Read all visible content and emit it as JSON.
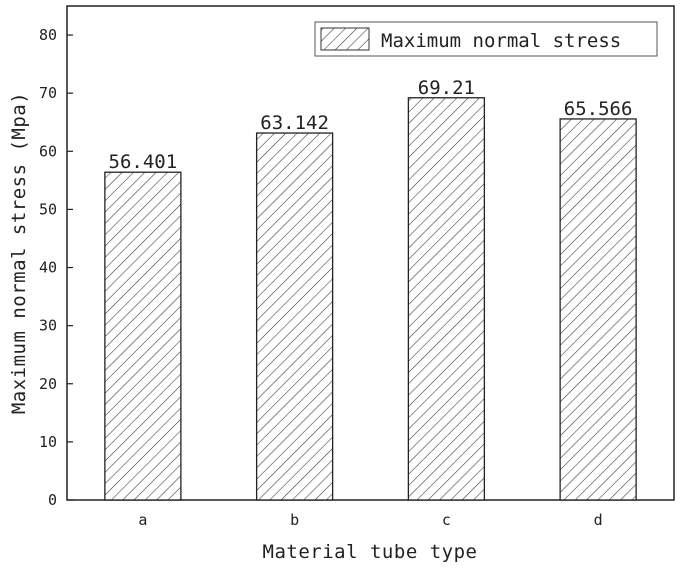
{
  "chart_data": {
    "type": "bar",
    "categories": [
      "a",
      "b",
      "c",
      "d"
    ],
    "series": [
      {
        "name": "Maximum normal stress",
        "values": [
          56.401,
          63.142,
          69.21,
          65.566
        ]
      }
    ],
    "data_labels": [
      "56.401",
      "63.142",
      "69.21",
      "65.566"
    ],
    "xlabel": "Material tube type",
    "ylabel": "Maximum normal stress (Mpa)",
    "ylim": [
      0,
      85
    ],
    "yticks": [
      0,
      10,
      20,
      30,
      40,
      50,
      60,
      70,
      80
    ],
    "bar_fill": "hatched",
    "bar_color": "#222222",
    "grid": false,
    "legend_position": "top-right"
  }
}
